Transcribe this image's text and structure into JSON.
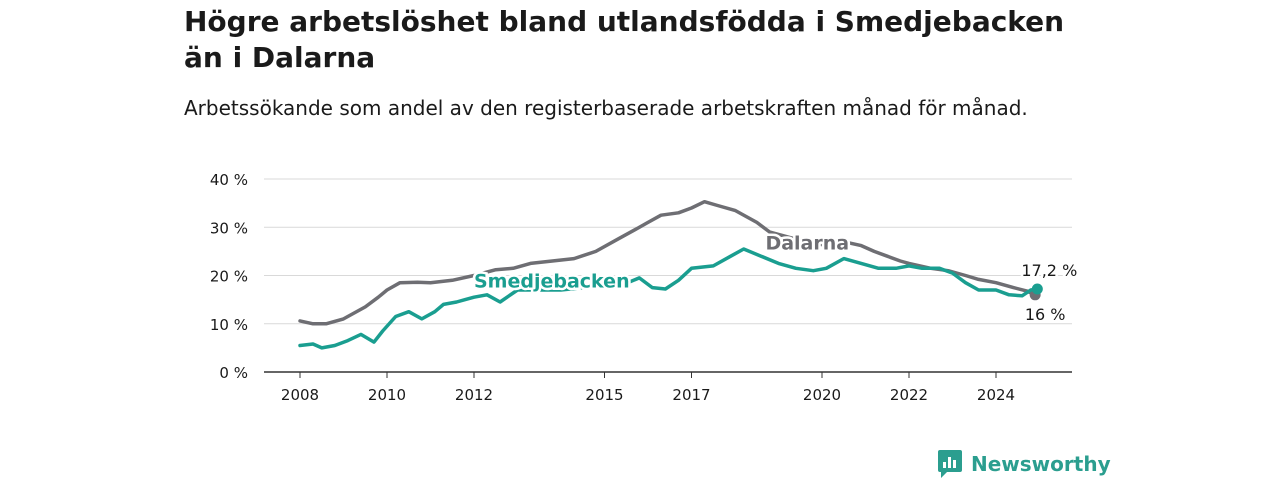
{
  "title": "Högre arbetslöshet bland utlandsfödda i Smedjebacken än i Dalarna",
  "subtitle": "Arbetssökande som andel av den registerbaserade arbetskraften månad för månad.",
  "brand": "Newsworthy",
  "chart_data": {
    "type": "line",
    "title": "Högre arbetslöshet bland utlandsfödda i Smedjebacken än i Dalarna",
    "subtitle": "Arbetssökande som andel av den registerbaserade arbetskraften månad för månad.",
    "xlabel": "",
    "ylabel": "",
    "xlim": [
      2007.5,
      2025.8
    ],
    "ylim": [
      0,
      40
    ],
    "y_ticks": [
      0,
      10,
      20,
      30,
      40
    ],
    "y_tick_labels": [
      "0 %",
      "10 %",
      "20 %",
      "30 %",
      "40 %"
    ],
    "x_ticks": [
      2008,
      2010,
      2012,
      2015,
      2017,
      2020,
      2022,
      2024
    ],
    "x_tick_labels": [
      "2008",
      "2010",
      "2012",
      "2015",
      "2017",
      "2020",
      "2022",
      "2024"
    ],
    "grid": true,
    "legend": "inline labels",
    "series": [
      {
        "name": "Dalarna",
        "color": "#6e6e73",
        "points": [
          [
            2008.0,
            10.6
          ],
          [
            2008.3,
            10.0
          ],
          [
            2008.6,
            10.0
          ],
          [
            2009.0,
            11.0
          ],
          [
            2009.5,
            13.5
          ],
          [
            2009.8,
            15.5
          ],
          [
            2010.0,
            17.0
          ],
          [
            2010.3,
            18.5
          ],
          [
            2010.7,
            18.6
          ],
          [
            2011.0,
            18.5
          ],
          [
            2011.5,
            19.0
          ],
          [
            2012.0,
            20.0
          ],
          [
            2012.5,
            21.2
          ],
          [
            2012.9,
            21.5
          ],
          [
            2013.3,
            22.5
          ],
          [
            2013.8,
            23.0
          ],
          [
            2014.3,
            23.5
          ],
          [
            2014.8,
            25.0
          ],
          [
            2015.3,
            27.5
          ],
          [
            2015.7,
            29.5
          ],
          [
            2016.0,
            31.0
          ],
          [
            2016.3,
            32.5
          ],
          [
            2016.7,
            33.0
          ],
          [
            2017.0,
            34.0
          ],
          [
            2017.3,
            35.3
          ],
          [
            2017.6,
            34.5
          ],
          [
            2018.0,
            33.5
          ],
          [
            2018.5,
            31.0
          ],
          [
            2018.8,
            29.0
          ],
          [
            2019.3,
            27.8
          ],
          [
            2020.2,
            26.0
          ],
          [
            2020.6,
            26.8
          ],
          [
            2020.9,
            26.2
          ],
          [
            2021.2,
            25.0
          ],
          [
            2021.5,
            24.0
          ],
          [
            2021.8,
            23.0
          ],
          [
            2022.0,
            22.5
          ],
          [
            2022.5,
            21.5
          ],
          [
            2022.9,
            21.0
          ],
          [
            2023.3,
            20.0
          ],
          [
            2023.6,
            19.2
          ],
          [
            2024.0,
            18.5
          ],
          [
            2024.4,
            17.5
          ],
          [
            2024.7,
            16.8
          ],
          [
            2024.9,
            16.0
          ]
        ],
        "end_label": "16 %"
      },
      {
        "name": "Smedjebacken",
        "color": "#1a9e90",
        "points": [
          [
            2008.0,
            5.5
          ],
          [
            2008.3,
            5.8
          ],
          [
            2008.5,
            5.0
          ],
          [
            2008.8,
            5.5
          ],
          [
            2009.1,
            6.5
          ],
          [
            2009.4,
            7.8
          ],
          [
            2009.7,
            6.2
          ],
          [
            2009.9,
            8.5
          ],
          [
            2010.2,
            11.5
          ],
          [
            2010.5,
            12.5
          ],
          [
            2010.8,
            11.0
          ],
          [
            2011.1,
            12.5
          ],
          [
            2011.3,
            14.0
          ],
          [
            2011.6,
            14.5
          ],
          [
            2011.8,
            15.0
          ],
          [
            2012.0,
            15.5
          ],
          [
            2012.3,
            16.0
          ],
          [
            2012.6,
            14.5
          ],
          [
            2013.0,
            17.0
          ],
          [
            2013.5,
            17.0
          ],
          [
            2014.0,
            17.0
          ],
          [
            2014.5,
            17.5
          ],
          [
            2015.0,
            18.0
          ],
          [
            2015.4,
            18.0
          ],
          [
            2015.8,
            19.5
          ],
          [
            2016.1,
            17.5
          ],
          [
            2016.4,
            17.2
          ],
          [
            2016.7,
            19.0
          ],
          [
            2017.0,
            21.5
          ],
          [
            2017.5,
            22.0
          ],
          [
            2017.9,
            24.0
          ],
          [
            2018.2,
            25.5
          ],
          [
            2018.6,
            24.0
          ],
          [
            2019.0,
            22.5
          ],
          [
            2019.4,
            21.5
          ],
          [
            2019.8,
            21.0
          ],
          [
            2020.1,
            21.5
          ],
          [
            2020.5,
            23.5
          ],
          [
            2020.9,
            22.5
          ],
          [
            2021.3,
            21.5
          ],
          [
            2021.7,
            21.5
          ],
          [
            2022.0,
            22.0
          ],
          [
            2022.3,
            21.5
          ],
          [
            2022.7,
            21.5
          ],
          [
            2023.0,
            20.5
          ],
          [
            2023.3,
            18.5
          ],
          [
            2023.6,
            17.0
          ],
          [
            2024.0,
            17.0
          ],
          [
            2024.3,
            16.0
          ],
          [
            2024.6,
            15.8
          ],
          [
            2024.8,
            17.0
          ],
          [
            2024.95,
            17.2
          ]
        ],
        "end_label": "17,2 %"
      }
    ]
  }
}
